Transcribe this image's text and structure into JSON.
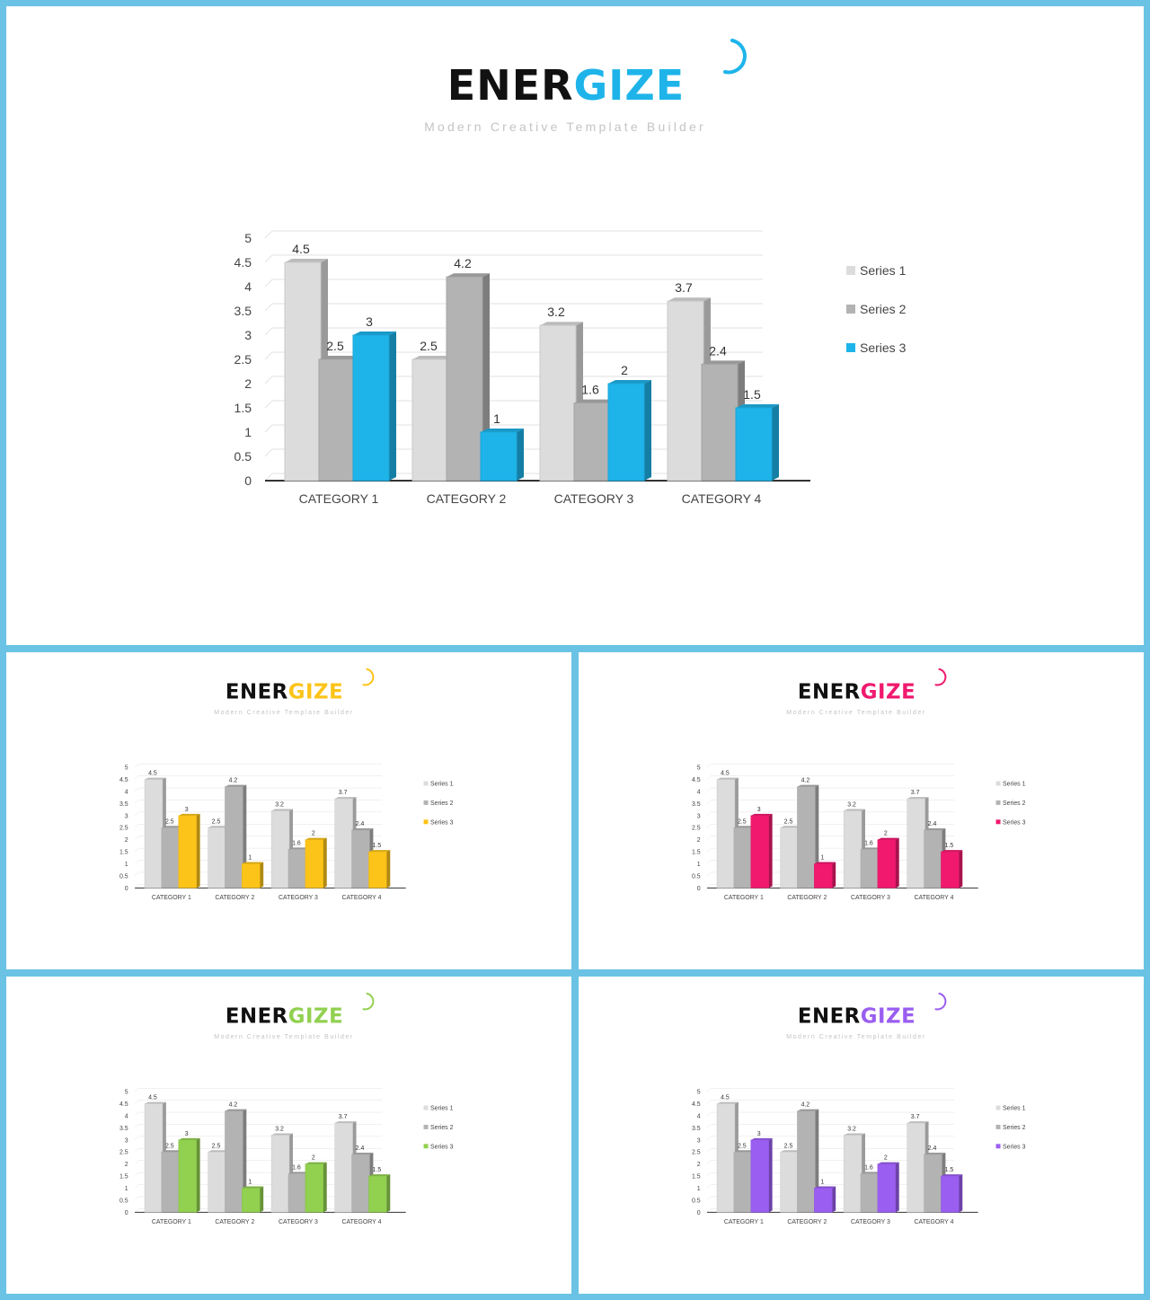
{
  "brand": {
    "title_part1": "ENER",
    "title_part2": "GIZE",
    "subtitle": "Modern Creative Template Builder"
  },
  "colors": {
    "series1": "#dcdcdc",
    "series2": "#b3b3b3",
    "blue": "#1eb4ea",
    "yellow": "#fcc419",
    "pink": "#f0196e",
    "green": "#92d050",
    "purple": "#9a5ef0",
    "frame": "#6ac3e4"
  },
  "chart_data": {
    "type": "bar",
    "categories": [
      "CATEGORY 1",
      "CATEGORY 2",
      "CATEGORY 3",
      "CATEGORY 4"
    ],
    "series": [
      {
        "name": "Series 1",
        "values": [
          4.5,
          2.5,
          3.2,
          3.7
        ]
      },
      {
        "name": "Series 2",
        "values": [
          2.5,
          4.2,
          1.6,
          2.4
        ]
      },
      {
        "name": "Series 3",
        "values": [
          3,
          1,
          2,
          1.5
        ]
      }
    ],
    "yticks": [
      "0",
      "0.5",
      "1",
      "1.5",
      "2",
      "2.5",
      "3",
      "3.5",
      "4",
      "4.5",
      "5"
    ],
    "ylim": [
      0,
      5
    ],
    "grid": true,
    "legend": "right",
    "style": "3d-clustered-column"
  },
  "slides": [
    {
      "name": "slide-main",
      "accent": "blue"
    },
    {
      "name": "slide-yellow",
      "accent": "yellow"
    },
    {
      "name": "slide-pink",
      "accent": "pink"
    },
    {
      "name": "slide-green",
      "accent": "green"
    },
    {
      "name": "slide-purple",
      "accent": "purple"
    }
  ]
}
